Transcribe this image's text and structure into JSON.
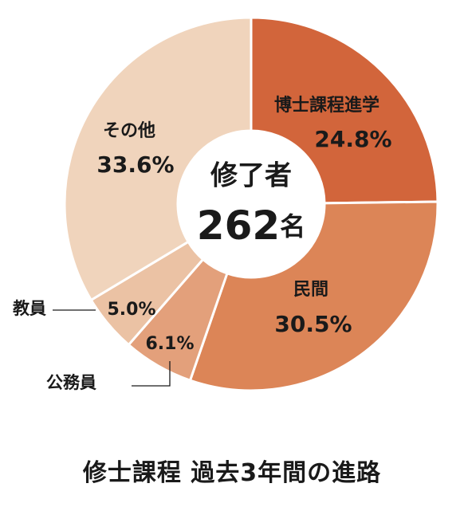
{
  "chart_data": {
    "type": "pie",
    "center_label": {
      "title": "修了者",
      "count": "262",
      "unit": "名"
    },
    "slices": [
      {
        "label": "博士課程進学",
        "value": 24.8,
        "display": "24.8%",
        "color": "#d2653b"
      },
      {
        "label": "民間",
        "value": 30.5,
        "display": "30.5%",
        "color": "#dc8557"
      },
      {
        "label": "公務員",
        "value": 6.1,
        "display": "6.1%",
        "color": "#e3a07b"
      },
      {
        "label": "教員",
        "value": 5.0,
        "display": "5.0%",
        "color": "#ebc2a4"
      },
      {
        "label": "その他",
        "value": 33.6,
        "display": "33.6%",
        "color": "#f0d4bc"
      }
    ]
  },
  "caption": "修士課程 過去3年間の進路"
}
